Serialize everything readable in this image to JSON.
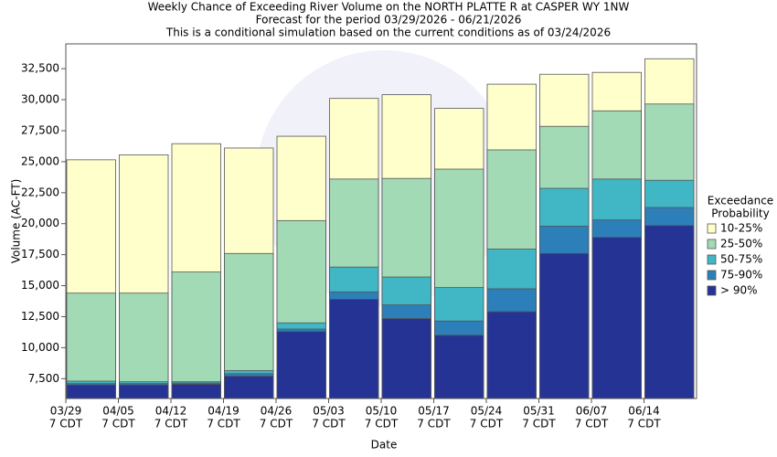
{
  "chart_data": {
    "type": "bar",
    "title": [
      "Weekly Chance of Exceeding River Volume on the NORTH PLATTE R at CASPER WY 1NW",
      "Forecast for the period 03/29/2026 - 06/21/2026",
      "This is a conditional simulation based on the current conditions as of 03/24/2026"
    ],
    "x_label": "Date",
    "y_label": "Volume (AC-FT)",
    "categories": [
      "03/29",
      "04/05",
      "04/12",
      "04/19",
      "04/26",
      "05/03",
      "05/10",
      "05/17",
      "05/24",
      "05/31",
      "06/07",
      "06/14"
    ],
    "x_tick_sublabel": "7 CDT",
    "legend_title": [
      "Exceedance",
      "Probability"
    ],
    "series": [
      {
        "name": "10-25%",
        "color": "#ffffcc",
        "values": [
          25150,
          25550,
          26450,
          26100,
          27050,
          30100,
          30400,
          29300,
          31250,
          32050,
          32200,
          33300
        ]
      },
      {
        "name": "25-50%",
        "color": "#a1dab4",
        "values": [
          14400,
          14400,
          16100,
          17600,
          20250,
          23600,
          23650,
          24400,
          25950,
          27850,
          29100,
          29650
        ]
      },
      {
        "name": "50-75%",
        "color": "#41b6c4",
        "values": [
          7300,
          7250,
          7250,
          8150,
          12000,
          16500,
          15700,
          14850,
          17950,
          22850,
          23600,
          23500
        ]
      },
      {
        "name": "75-90%",
        "color": "#2c7fb8",
        "values": [
          7100,
          7100,
          7150,
          7900,
          11500,
          14500,
          13450,
          12150,
          14750,
          19800,
          20300,
          21300
        ]
      },
      {
        "name": "> 90%",
        "color": "#253494",
        "values": [
          7000,
          7000,
          7050,
          7700,
          11300,
          13900,
          12350,
          11000,
          12900,
          17600,
          18900,
          19850
        ]
      }
    ],
    "ylim": [
      5900,
      34500
    ],
    "yticks": [
      {
        "value": 7500,
        "label": "7,500"
      },
      {
        "value": 10000,
        "label": "10,000"
      },
      {
        "value": 12500,
        "label": "12,500"
      },
      {
        "value": 15000,
        "label": "15,000"
      },
      {
        "value": 17500,
        "label": "17,500"
      },
      {
        "value": 20000,
        "label": "20,000"
      },
      {
        "value": 22500,
        "label": "22,500"
      },
      {
        "value": 25000,
        "label": "25,000"
      },
      {
        "value": 27500,
        "label": "27,500"
      },
      {
        "value": 30000,
        "label": "30,000"
      },
      {
        "value": 32500,
        "label": "32,500"
      }
    ],
    "grid": false
  }
}
